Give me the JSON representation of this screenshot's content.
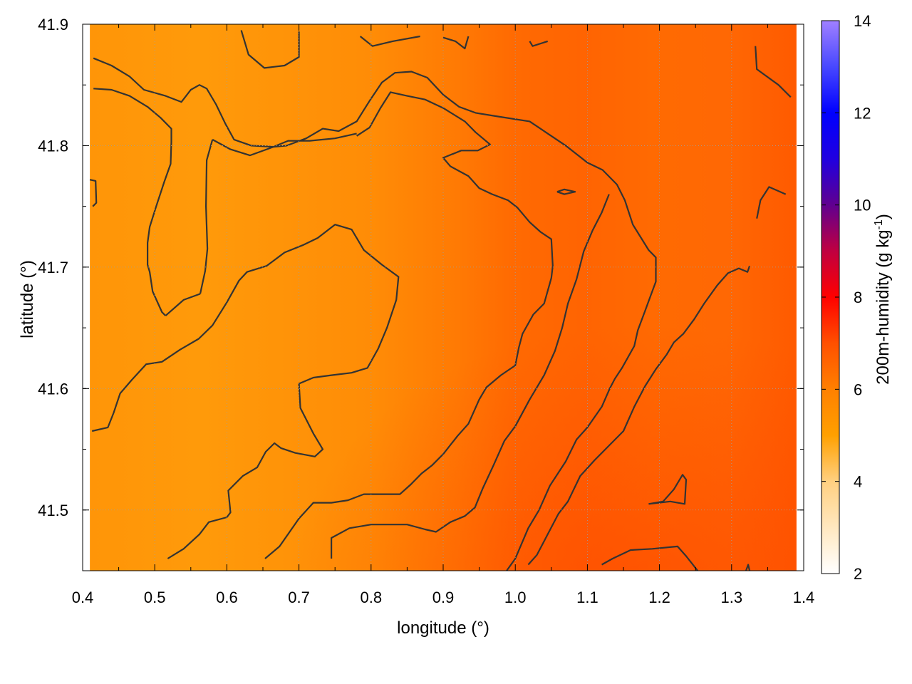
{
  "chart_data": {
    "type": "heatmap",
    "title": "",
    "xlabel": "longitude (°)",
    "ylabel": "latitude (°)",
    "colorbar_label": "200m-humidity (g kg",
    "colorbar_label_exponent": "-1",
    "colorbar_label_suffix": ")",
    "xlim": [
      0.4,
      1.4
    ],
    "ylim": [
      41.45,
      41.9
    ],
    "data_extent": {
      "x": [
        0.41,
        1.39
      ],
      "y": [
        41.45,
        41.9
      ]
    },
    "x_ticks": [
      "0.4",
      "0.5",
      "0.6",
      "0.7",
      "0.8",
      "0.9",
      "1.0",
      "1.1",
      "1.2",
      "1.3",
      "1.4"
    ],
    "y_ticks": [
      "41.5",
      "41.6",
      "41.7",
      "41.8",
      "41.9"
    ],
    "colorbar_range": [
      2,
      14
    ],
    "colorbar_ticks": [
      "2",
      "4",
      "6",
      "8",
      "10",
      "12",
      "14"
    ],
    "colormap": [
      {
        "value": 2,
        "color": "#ffffff"
      },
      {
        "value": 4,
        "color": "#ffd080"
      },
      {
        "value": 5,
        "color": "#ffa000"
      },
      {
        "value": 6,
        "color": "#ff8000"
      },
      {
        "value": 7,
        "color": "#ff5000"
      },
      {
        "value": 8,
        "color": "#ff0000"
      },
      {
        "value": 9,
        "color": "#c00040"
      },
      {
        "value": 10,
        "color": "#600090"
      },
      {
        "value": 11,
        "color": "#2000e0"
      },
      {
        "value": 12,
        "color": "#0000ff"
      },
      {
        "value": 13,
        "color": "#4848ff"
      },
      {
        "value": 14,
        "color": "#a080ff"
      }
    ],
    "grid": true,
    "field_description_values": {
      "west_band_lon": 0.63,
      "west_value": 5.4,
      "east_band_lon": 1.0,
      "east_value": 6.6
    },
    "contour_color": "#333333",
    "contours": [
      [
        [
          0.415,
          41.872
        ],
        [
          0.44,
          41.866
        ],
        [
          0.465,
          41.857
        ],
        [
          0.485,
          41.846
        ],
        [
          0.515,
          41.841
        ],
        [
          0.537,
          41.836
        ],
        [
          0.55,
          41.846
        ],
        [
          0.562,
          41.85
        ],
        [
          0.572,
          41.847
        ],
        [
          0.585,
          41.834
        ],
        [
          0.598,
          41.818
        ],
        [
          0.61,
          41.805
        ],
        [
          0.634,
          41.8
        ],
        [
          0.664,
          41.799
        ],
        [
          0.683,
          41.8
        ],
        [
          0.71,
          41.806
        ],
        [
          0.733,
          41.814
        ],
        [
          0.755,
          41.812
        ],
        [
          0.78,
          41.82
        ],
        [
          0.798,
          41.837
        ],
        [
          0.815,
          41.852
        ],
        [
          0.833,
          41.86
        ],
        [
          0.856,
          41.861
        ],
        [
          0.878,
          41.856
        ],
        [
          0.9,
          41.842
        ],
        [
          0.922,
          41.832
        ],
        [
          0.945,
          41.827
        ],
        [
          0.976,
          41.824
        ],
        [
          1.02,
          41.82
        ],
        [
          1.045,
          41.81
        ],
        [
          1.07,
          41.8
        ],
        [
          1.1,
          41.786
        ],
        [
          1.121,
          41.78
        ],
        [
          1.141,
          41.768
        ],
        [
          1.152,
          41.755
        ],
        [
          1.163,
          41.735
        ],
        [
          1.185,
          41.714
        ],
        [
          1.195,
          41.708
        ],
        [
          1.195,
          41.688
        ],
        [
          1.188,
          41.677
        ],
        [
          1.18,
          41.664
        ],
        [
          1.17,
          41.648
        ],
        [
          1.165,
          41.635
        ],
        [
          1.148,
          41.617
        ],
        [
          1.138,
          41.608
        ],
        [
          1.131,
          41.6
        ],
        [
          1.12,
          41.585
        ],
        [
          1.1,
          41.568
        ],
        [
          1.085,
          41.558
        ],
        [
          1.07,
          41.54
        ],
        [
          1.048,
          41.52
        ],
        [
          1.033,
          41.5
        ],
        [
          1.018,
          41.485
        ],
        [
          1.0,
          41.46
        ],
        [
          0.988,
          41.45
        ]
      ],
      [
        [
          0.415,
          41.847
        ],
        [
          0.44,
          41.846
        ],
        [
          0.465,
          41.841
        ],
        [
          0.49,
          41.832
        ],
        [
          0.508,
          41.823
        ],
        [
          0.523,
          41.814
        ],
        [
          0.523,
          41.803
        ],
        [
          0.522,
          41.785
        ],
        [
          0.513,
          41.77
        ],
        [
          0.502,
          41.75
        ],
        [
          0.493,
          41.733
        ],
        [
          0.49,
          41.72
        ],
        [
          0.49,
          41.702
        ],
        [
          0.493,
          41.696
        ],
        [
          0.497,
          41.68
        ],
        [
          0.51,
          41.663
        ],
        [
          0.515,
          41.66
        ]
      ],
      [
        [
          0.515,
          41.66
        ],
        [
          0.54,
          41.673
        ],
        [
          0.563,
          41.678
        ]
      ],
      [
        [
          0.563,
          41.678
        ],
        [
          0.57,
          41.697
        ],
        [
          0.573,
          41.715
        ],
        [
          0.571,
          41.75
        ],
        [
          0.572,
          41.788
        ],
        [
          0.58,
          41.805
        ]
      ],
      [
        [
          0.58,
          41.805
        ],
        [
          0.605,
          41.797
        ],
        [
          0.632,
          41.792
        ],
        [
          0.66,
          41.798
        ],
        [
          0.685,
          41.804
        ],
        [
          0.715,
          41.804
        ],
        [
          0.75,
          41.806
        ],
        [
          0.78,
          41.81
        ]
      ],
      [
        [
          0.62,
          41.895
        ],
        [
          0.63,
          41.875
        ],
        [
          0.652,
          41.864
        ],
        [
          0.68,
          41.866
        ],
        [
          0.7,
          41.873
        ],
        [
          0.7,
          41.894
        ]
      ],
      [
        [
          0.785,
          41.89
        ],
        [
          0.802,
          41.882
        ],
        [
          0.83,
          41.886
        ],
        [
          0.868,
          41.89
        ]
      ],
      [
        [
          0.9,
          41.889
        ],
        [
          0.917,
          41.886
        ],
        [
          0.93,
          41.88
        ],
        [
          0.935,
          41.89
        ]
      ],
      [
        [
          1.02,
          41.886
        ],
        [
          1.024,
          41.882
        ],
        [
          1.045,
          41.886
        ]
      ],
      [
        [
          1.333,
          41.882
        ],
        [
          1.335,
          41.863
        ],
        [
          1.365,
          41.85
        ],
        [
          1.382,
          41.84
        ]
      ],
      [
        [
          0.41,
          41.772
        ],
        [
          0.418,
          41.771
        ],
        [
          0.419,
          41.753
        ],
        [
          0.414,
          41.75
        ]
      ],
      [
        [
          1.058,
          41.762
        ],
        [
          1.068,
          41.764
        ],
        [
          1.083,
          41.762
        ],
        [
          1.068,
          41.76
        ],
        [
          1.058,
          41.762
        ]
      ],
      [
        [
          0.413,
          41.565
        ],
        [
          0.435,
          41.568
        ],
        [
          0.443,
          41.58
        ],
        [
          0.452,
          41.596
        ],
        [
          0.468,
          41.607
        ],
        [
          0.488,
          41.62
        ],
        [
          0.51,
          41.622
        ],
        [
          0.535,
          41.632
        ],
        [
          0.561,
          41.641
        ],
        [
          0.58,
          41.652
        ],
        [
          0.6,
          41.671
        ],
        [
          0.617,
          41.689
        ],
        [
          0.628,
          41.696
        ],
        [
          0.655,
          41.701
        ],
        [
          0.68,
          41.712
        ],
        [
          0.705,
          41.718
        ],
        [
          0.726,
          41.724
        ],
        [
          0.75,
          41.735
        ],
        [
          0.773,
          41.731
        ],
        [
          0.79,
          41.714
        ],
        [
          0.815,
          41.702
        ],
        [
          0.838,
          41.692
        ],
        [
          0.835,
          41.673
        ],
        [
          0.822,
          41.65
        ],
        [
          0.81,
          41.633
        ],
        [
          0.795,
          41.617
        ],
        [
          0.773,
          41.613
        ],
        [
          0.745,
          41.611
        ],
        [
          0.72,
          41.609
        ],
        [
          0.7,
          41.604
        ],
        [
          0.702,
          41.584
        ],
        [
          0.72,
          41.563
        ],
        [
          0.733,
          41.55
        ],
        [
          0.722,
          41.544
        ],
        [
          0.695,
          41.547
        ],
        [
          0.675,
          41.551
        ],
        [
          0.666,
          41.555
        ],
        [
          0.654,
          41.548
        ],
        [
          0.642,
          41.535
        ],
        [
          0.622,
          41.528
        ],
        [
          0.602,
          41.516
        ],
        [
          0.605,
          41.498
        ],
        [
          0.6,
          41.494
        ],
        [
          0.575,
          41.49
        ],
        [
          0.562,
          41.48
        ],
        [
          0.54,
          41.468
        ],
        [
          0.518,
          41.46
        ]
      ],
      [
        [
          0.653,
          41.46
        ],
        [
          0.673,
          41.47
        ],
        [
          0.7,
          41.493
        ],
        [
          0.72,
          41.506
        ],
        [
          0.745,
          41.506
        ],
        [
          0.768,
          41.508
        ],
        [
          0.79,
          41.513
        ],
        [
          0.84,
          41.513
        ],
        [
          0.855,
          41.521
        ],
        [
          0.87,
          41.53
        ],
        [
          0.885,
          41.537
        ],
        [
          0.9,
          41.546
        ],
        [
          0.92,
          41.561
        ],
        [
          0.935,
          41.571
        ],
        [
          0.95,
          41.591
        ],
        [
          0.96,
          41.601
        ],
        [
          0.98,
          41.611
        ],
        [
          1.0,
          41.619
        ],
        [
          1.005,
          41.634
        ],
        [
          1.01,
          41.645
        ],
        [
          1.025,
          41.661
        ],
        [
          1.04,
          41.67
        ],
        [
          1.05,
          41.691
        ],
        [
          1.052,
          41.701
        ],
        [
          1.05,
          41.723
        ],
        [
          1.035,
          41.729
        ],
        [
          1.02,
          41.737
        ],
        [
          1.003,
          41.749
        ],
        [
          0.99,
          41.755
        ],
        [
          0.968,
          41.76
        ],
        [
          0.95,
          41.765
        ],
        [
          0.935,
          41.775
        ],
        [
          0.91,
          41.783
        ],
        [
          0.9,
          41.79
        ],
        [
          0.925,
          41.796
        ],
        [
          0.948,
          41.796
        ],
        [
          0.965,
          41.801
        ],
        [
          0.945,
          41.811
        ],
        [
          0.93,
          41.82
        ],
        [
          0.9,
          41.831
        ],
        [
          0.875,
          41.838
        ],
        [
          0.85,
          41.841
        ],
        [
          0.827,
          41.844
        ],
        [
          0.813,
          41.831
        ],
        [
          0.798,
          41.815
        ],
        [
          0.78,
          41.808
        ]
      ],
      [
        [
          0.745,
          41.46
        ],
        [
          0.745,
          41.477
        ],
        [
          0.77,
          41.485
        ],
        [
          0.8,
          41.488
        ],
        [
          0.85,
          41.488
        ],
        [
          0.875,
          41.484
        ],
        [
          0.89,
          41.482
        ],
        [
          0.91,
          41.49
        ],
        [
          0.93,
          41.495
        ],
        [
          0.944,
          41.502
        ],
        [
          0.955,
          41.518
        ],
        [
          0.97,
          41.537
        ],
        [
          0.985,
          41.557
        ],
        [
          1.0,
          41.569
        ],
        [
          1.02,
          41.591
        ],
        [
          1.04,
          41.611
        ],
        [
          1.055,
          41.631
        ],
        [
          1.065,
          41.65
        ],
        [
          1.073,
          41.67
        ],
        [
          1.085,
          41.69
        ],
        [
          1.095,
          41.713
        ],
        [
          1.107,
          41.73
        ],
        [
          1.12,
          41.745
        ],
        [
          1.13,
          41.76
        ]
      ],
      [
        [
          1.018,
          41.455
        ],
        [
          1.03,
          41.463
        ],
        [
          1.045,
          41.48
        ],
        [
          1.06,
          41.497
        ],
        [
          1.073,
          41.507
        ],
        [
          1.09,
          41.528
        ],
        [
          1.11,
          41.541
        ],
        [
          1.13,
          41.553
        ],
        [
          1.15,
          41.565
        ],
        [
          1.165,
          41.585
        ],
        [
          1.18,
          41.602
        ],
        [
          1.195,
          41.616
        ],
        [
          1.21,
          41.628
        ],
        [
          1.22,
          41.638
        ],
        [
          1.233,
          41.645
        ],
        [
          1.248,
          41.657
        ],
        [
          1.262,
          41.67
        ],
        [
          1.28,
          41.685
        ],
        [
          1.295,
          41.695
        ],
        [
          1.31,
          41.699
        ],
        [
          1.322,
          41.696
        ],
        [
          1.325,
          41.701
        ]
      ],
      [
        [
          1.12,
          41.455
        ],
        [
          1.135,
          41.46
        ],
        [
          1.16,
          41.467
        ],
        [
          1.19,
          41.468
        ],
        [
          1.225,
          41.47
        ],
        [
          1.237,
          41.462
        ],
        [
          1.253,
          41.45
        ]
      ],
      [
        [
          1.185,
          41.505
        ],
        [
          1.215,
          41.507
        ],
        [
          1.235,
          41.505
        ],
        [
          1.237,
          41.525
        ],
        [
          1.232,
          41.529
        ],
        [
          1.22,
          41.517
        ],
        [
          1.205,
          41.507
        ],
        [
          1.185,
          41.505
        ]
      ],
      [
        [
          1.32,
          41.45
        ],
        [
          1.323,
          41.455
        ],
        [
          1.325,
          41.45
        ]
      ],
      [
        [
          1.335,
          41.74
        ],
        [
          1.34,
          41.755
        ],
        [
          1.352,
          41.766
        ],
        [
          1.375,
          41.76
        ]
      ]
    ]
  }
}
